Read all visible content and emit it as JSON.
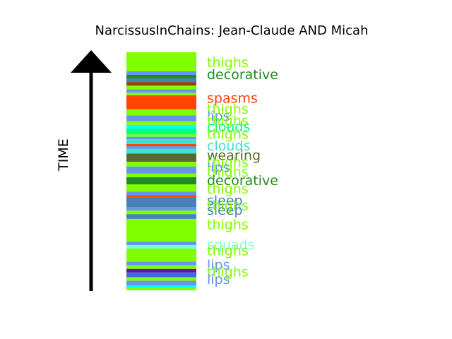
{
  "chart_data": {
    "type": "bar",
    "title": "NarcissusInChains: Jean-Claude AND Micah",
    "ylabel": "TIME",
    "ylim": [
      0,
      100
    ],
    "grid": false,
    "segments": [
      {
        "start": 0.0,
        "end": 1.0,
        "color": "#7FFF00"
      },
      {
        "start": 1.0,
        "end": 2.0,
        "color": "#00FFFF"
      },
      {
        "start": 2.0,
        "end": 4.0,
        "color": "#6495ED"
      },
      {
        "start": 4.0,
        "end": 5.5,
        "color": "#7FFF00"
      },
      {
        "start": 5.5,
        "end": 7.5,
        "color": "#4169E1"
      },
      {
        "start": 7.5,
        "end": 9.0,
        "color": "#6A0DAD"
      },
      {
        "start": 9.0,
        "end": 10.5,
        "color": "#7FFF00"
      },
      {
        "start": 10.5,
        "end": 12.0,
        "color": "#6495ED"
      },
      {
        "start": 12.0,
        "end": 14.0,
        "color": "#7FFF00"
      },
      {
        "start": 14.0,
        "end": 17.5,
        "color": "#7FFF00"
      },
      {
        "start": 17.5,
        "end": 19.0,
        "color": "#7FFFD4"
      },
      {
        "start": 19.0,
        "end": 20.5,
        "color": "#6495ED"
      },
      {
        "start": 20.5,
        "end": 30.0,
        "color": "#7FFF00"
      },
      {
        "start": 30.0,
        "end": 32.0,
        "color": "#4682B4"
      },
      {
        "start": 32.0,
        "end": 33.5,
        "color": "#7FFF00"
      },
      {
        "start": 33.5,
        "end": 35.0,
        "color": "#6495ED"
      },
      {
        "start": 35.0,
        "end": 39.0,
        "color": "#4682B4"
      },
      {
        "start": 39.0,
        "end": 40.0,
        "color": "#FF4500"
      },
      {
        "start": 40.0,
        "end": 41.5,
        "color": "#6495ED"
      },
      {
        "start": 41.5,
        "end": 44.5,
        "color": "#7FFF00"
      },
      {
        "start": 44.5,
        "end": 47.5,
        "color": "#228B22"
      },
      {
        "start": 47.5,
        "end": 49.0,
        "color": "#7FFF00"
      },
      {
        "start": 49.0,
        "end": 52.0,
        "color": "#6495ED"
      },
      {
        "start": 52.0,
        "end": 54.0,
        "color": "#7FFF00"
      },
      {
        "start": 54.0,
        "end": 57.5,
        "color": "#556B2F"
      },
      {
        "start": 57.5,
        "end": 59.5,
        "color": "#40E0D0"
      },
      {
        "start": 59.5,
        "end": 60.5,
        "color": "#6495ED"
      },
      {
        "start": 60.5,
        "end": 61.5,
        "color": "#FF4500"
      },
      {
        "start": 61.5,
        "end": 63.5,
        "color": "#40E0D0"
      },
      {
        "start": 63.5,
        "end": 64.5,
        "color": "#6495ED"
      },
      {
        "start": 64.5,
        "end": 65.5,
        "color": "#7FFF00"
      },
      {
        "start": 65.5,
        "end": 68.0,
        "color": "#00FF7F"
      },
      {
        "start": 68.0,
        "end": 69.5,
        "color": "#00FFFF"
      },
      {
        "start": 69.5,
        "end": 71.0,
        "color": "#7FFF00"
      },
      {
        "start": 71.0,
        "end": 73.5,
        "color": "#6495ED"
      },
      {
        "start": 73.5,
        "end": 76.0,
        "color": "#7FFF00"
      },
      {
        "start": 76.0,
        "end": 82.0,
        "color": "#FF4500"
      },
      {
        "start": 82.0,
        "end": 83.0,
        "color": "#7FFF00"
      },
      {
        "start": 83.0,
        "end": 84.5,
        "color": "#6495ED"
      },
      {
        "start": 84.5,
        "end": 86.0,
        "color": "#7FFF00"
      },
      {
        "start": 86.0,
        "end": 87.5,
        "color": "#8B4513"
      },
      {
        "start": 87.5,
        "end": 89.0,
        "color": "#4682B4"
      },
      {
        "start": 89.0,
        "end": 90.5,
        "color": "#228B22"
      },
      {
        "start": 90.5,
        "end": 92.0,
        "color": "#6495ED"
      },
      {
        "start": 92.0,
        "end": 100.0,
        "color": "#7FFF00"
      }
    ],
    "labels": [
      {
        "text": "thighs",
        "y": 95.5,
        "color": "#7FFF00"
      },
      {
        "text": "decorative",
        "y": 90.5,
        "color": "#228B22"
      },
      {
        "text": "spasms",
        "y": 80.5,
        "color": "#FF4500"
      },
      {
        "text": "thighs",
        "y": 76.0,
        "color": "#7FFF00"
      },
      {
        "text": "lips",
        "y": 73.0,
        "color": "#6495ED"
      },
      {
        "text": "thighs",
        "y": 71.0,
        "color": "#7FFF00"
      },
      {
        "text": "clouds",
        "y": 68.5,
        "color": "#00FF7F"
      },
      {
        "text": "thighs",
        "y": 65.5,
        "color": "#7FFF00"
      },
      {
        "text": "clouds",
        "y": 60.5,
        "color": "#40E0D0"
      },
      {
        "text": "wearing",
        "y": 56.5,
        "color": "#556B2F"
      },
      {
        "text": "thighs",
        "y": 53.5,
        "color": "#7FFF00"
      },
      {
        "text": "lips",
        "y": 51.5,
        "color": "#6495ED"
      },
      {
        "text": "thighs",
        "y": 49.5,
        "color": "#7FFF00"
      },
      {
        "text": "decorative",
        "y": 46.0,
        "color": "#228B22"
      },
      {
        "text": "thighs",
        "y": 42.5,
        "color": "#7FFF00"
      },
      {
        "text": "sleep",
        "y": 37.5,
        "color": "#4682B4"
      },
      {
        "text": "thighs",
        "y": 35.5,
        "color": "#7FFF00"
      },
      {
        "text": "sleep",
        "y": 33.5,
        "color": "#4682B4"
      },
      {
        "text": "thighs",
        "y": 27.5,
        "color": "#7FFF00"
      },
      {
        "text": "squads",
        "y": 19.0,
        "color": "#7FFFD4"
      },
      {
        "text": "thighs",
        "y": 16.5,
        "color": "#7FFF00"
      },
      {
        "text": "lips",
        "y": 10.5,
        "color": "#6495ED"
      },
      {
        "text": "thighs",
        "y": 7.5,
        "color": "#7FFF00"
      },
      {
        "text": "lips",
        "y": 4.5,
        "color": "#6495ED"
      }
    ]
  }
}
